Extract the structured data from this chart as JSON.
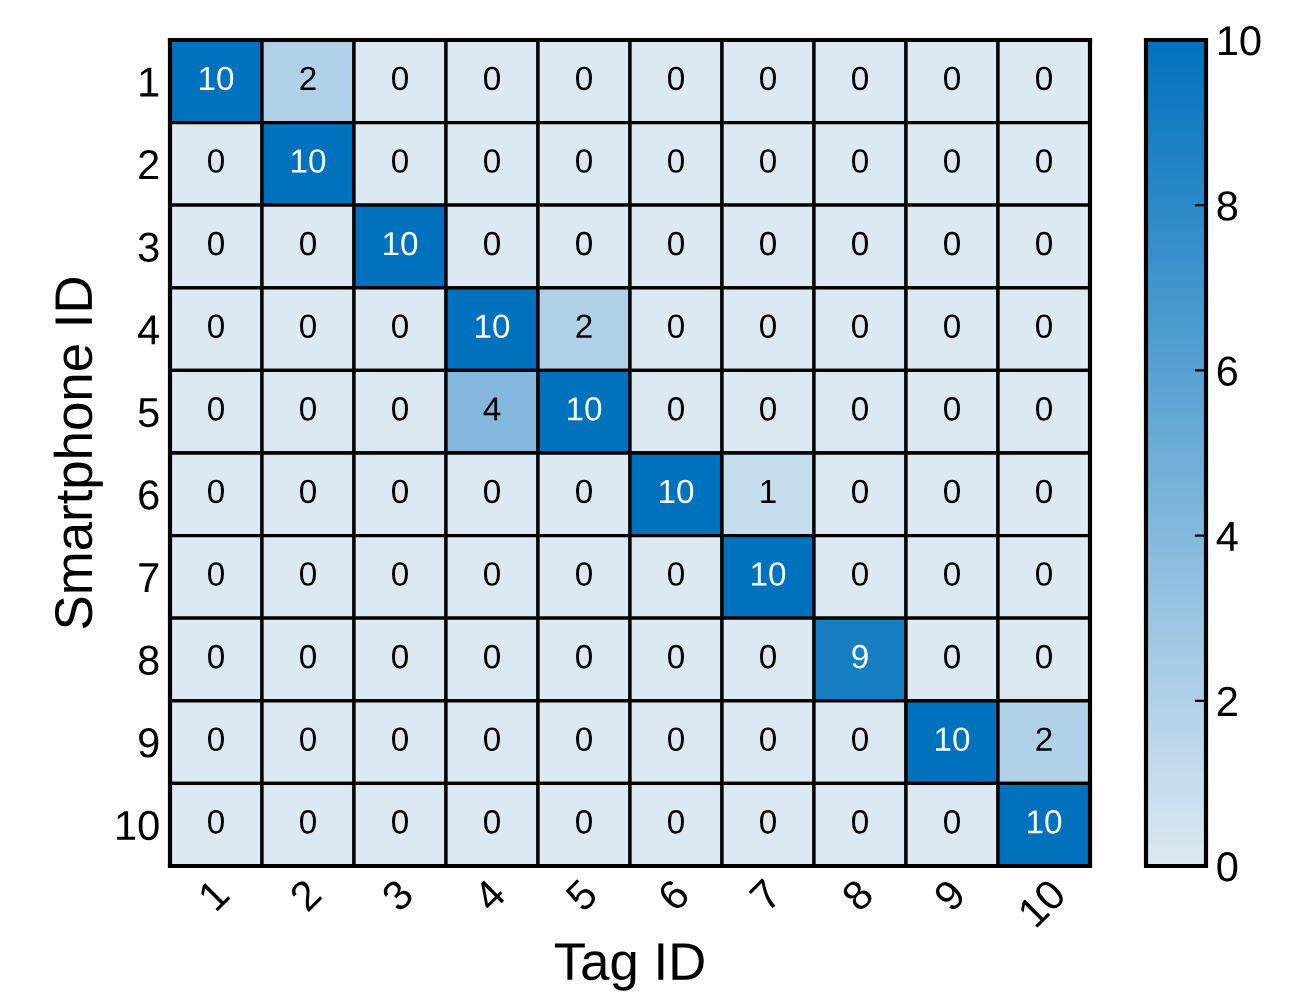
{
  "chart_data": {
    "type": "heatmap",
    "xlabel": "Tag ID",
    "ylabel": "Smartphone ID",
    "categories": [
      "1",
      "2",
      "3",
      "4",
      "5",
      "6",
      "7",
      "8",
      "9",
      "10"
    ],
    "y_categories": [
      "1",
      "2",
      "3",
      "4",
      "5",
      "6",
      "7",
      "8",
      "9",
      "10"
    ],
    "cells": [
      [
        10,
        2,
        0,
        0,
        0,
        0,
        0,
        0,
        0,
        0
      ],
      [
        0,
        10,
        0,
        0,
        0,
        0,
        0,
        0,
        0,
        0
      ],
      [
        0,
        0,
        10,
        0,
        0,
        0,
        0,
        0,
        0,
        0
      ],
      [
        0,
        0,
        0,
        10,
        2,
        0,
        0,
        0,
        0,
        0
      ],
      [
        0,
        0,
        0,
        4,
        10,
        0,
        0,
        0,
        0,
        0
      ],
      [
        0,
        0,
        0,
        0,
        0,
        10,
        1,
        0,
        0,
        0
      ],
      [
        0,
        0,
        0,
        0,
        0,
        0,
        10,
        0,
        0,
        0
      ],
      [
        0,
        0,
        0,
        0,
        0,
        0,
        0,
        9,
        0,
        0
      ],
      [
        0,
        0,
        0,
        0,
        0,
        0,
        0,
        0,
        10,
        2
      ],
      [
        0,
        0,
        0,
        0,
        0,
        0,
        0,
        0,
        0,
        10
      ]
    ],
    "colors": [
      "#dce9f2",
      "#0072bd"
    ],
    "clim": [
      0,
      10
    ],
    "cticks": [
      0,
      2,
      4,
      6,
      8,
      10
    ],
    "data_labels": true
  }
}
